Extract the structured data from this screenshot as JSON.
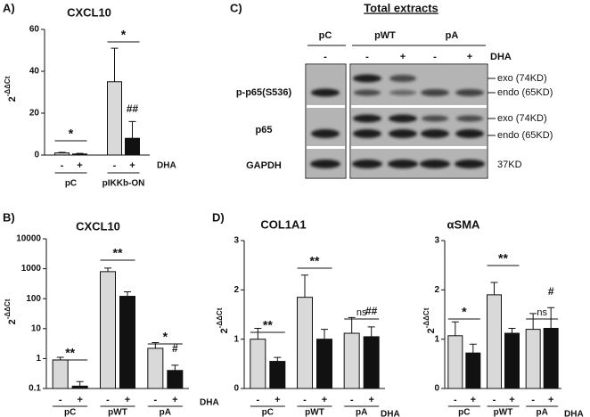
{
  "chart_data": [
    {
      "type": "bar",
      "panel": "A)",
      "title": "CXCL10",
      "ylabel": "2",
      "ylabel_sup": "-ΔΔCt",
      "categories": [
        "-",
        "+",
        "-",
        "+"
      ],
      "groups": [
        "pC",
        "pIKKb-ON"
      ],
      "treatment": "DHA",
      "values": [
        1,
        0.5,
        35,
        8
      ],
      "errors": [
        0.3,
        0.3,
        16,
        8
      ],
      "bar_colors": [
        "#d9d9d9",
        "#111111"
      ],
      "ylim": [
        0,
        60
      ],
      "yticks": [
        0,
        20,
        40,
        60
      ],
      "log": false,
      "annotations": [
        "*",
        "*",
        "##"
      ]
    },
    {
      "type": "bar",
      "panel": "B)",
      "title": "CXCL10",
      "ylabel": "2",
      "ylabel_sup": "-ΔΔCt",
      "categories": [
        "-",
        "+",
        "-",
        "+",
        "-",
        "+"
      ],
      "groups": [
        "pC",
        "pWT",
        "pA"
      ],
      "treatment": "DHA",
      "values": [
        0.9,
        0.12,
        800,
        120,
        2.2,
        0.4
      ],
      "errors": [
        0.2,
        0.05,
        250,
        50,
        1.2,
        0.2
      ],
      "bar_colors": [
        "#d9d9d9",
        "#111111"
      ],
      "ylim": [
        0.1,
        10000
      ],
      "yticks": [
        0.1,
        1,
        10,
        100,
        1000,
        10000
      ],
      "log": true,
      "annotations": [
        "**",
        "**",
        "*",
        "#"
      ]
    },
    {
      "type": "bar",
      "panel": "D)",
      "title": "COL1A1",
      "ylabel": "2",
      "ylabel_sup": "-ΔΔCt",
      "categories": [
        "-",
        "+",
        "-",
        "+",
        "-",
        "+"
      ],
      "groups": [
        "pC",
        "pWT",
        "pA"
      ],
      "treatment": "DHA",
      "values": [
        1.0,
        0.55,
        1.85,
        1.0,
        1.12,
        1.05
      ],
      "errors": [
        0.22,
        0.08,
        0.45,
        0.2,
        0.32,
        0.2
      ],
      "bar_colors": [
        "#d9d9d9",
        "#111111"
      ],
      "ylim": [
        0,
        3
      ],
      "yticks": [
        0,
        1,
        2,
        3
      ],
      "log": false,
      "annotations": [
        "**",
        "**",
        "ns",
        "##"
      ]
    },
    {
      "type": "bar",
      "title": "αSMA",
      "ylabel": "2",
      "ylabel_sup": "-ΔΔCt",
      "categories": [
        "-",
        "+",
        "-",
        "+",
        "-",
        "+"
      ],
      "groups": [
        "pC",
        "pWT",
        "pA"
      ],
      "treatment": "DHA",
      "values": [
        1.07,
        0.72,
        1.9,
        1.12,
        1.2,
        1.22
      ],
      "errors": [
        0.28,
        0.18,
        0.25,
        0.1,
        0.32,
        0.42
      ],
      "bar_colors": [
        "#d9d9d9",
        "#111111"
      ],
      "ylim": [
        0,
        3
      ],
      "yticks": [
        0,
        1,
        2,
        3
      ],
      "log": false,
      "annotations": [
        "*",
        "**",
        "ns",
        "#"
      ]
    }
  ],
  "blot": {
    "panel": "C)",
    "title": "Total extracts",
    "groups": [
      "pC",
      "pWT",
      "pA"
    ],
    "signs": [
      "-",
      "-",
      "+",
      "-",
      "+"
    ],
    "treatment": "DHA",
    "rows": [
      "p-p65(S536)",
      "p65",
      "GAPDH"
    ],
    "band_labels": [
      "exo (74KD)",
      "endo (65KD)",
      "exo (74KD)",
      "endo (65KD)",
      "37KD"
    ]
  }
}
